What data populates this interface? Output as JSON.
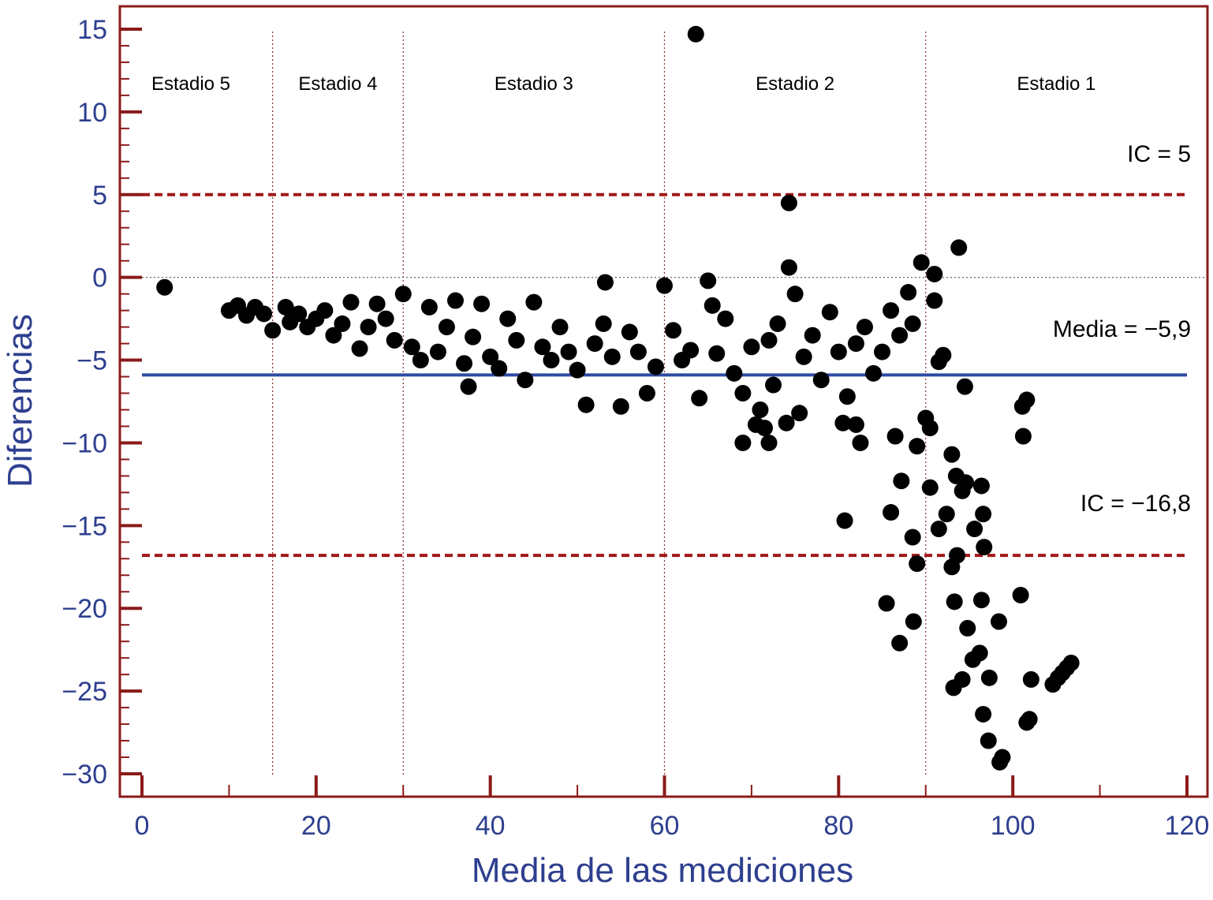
{
  "chart_data": {
    "type": "scatter",
    "title": "",
    "xlabel": "Media de las mediciones",
    "ylabel": "Diferencias",
    "xlim": [
      0,
      120
    ],
    "ylim": [
      -30,
      15
    ],
    "x_ticks": [
      0,
      20,
      40,
      60,
      80,
      100,
      120
    ],
    "y_ticks": [
      15,
      10,
      5,
      0,
      -5,
      -10,
      -15,
      -20,
      -25,
      -30
    ],
    "x_tick_labels": [
      "0",
      "20",
      "40",
      "60",
      "80",
      "100",
      "120"
    ],
    "y_tick_labels": [
      "15",
      "10",
      "5",
      "0",
      "−5",
      "−10",
      "−15",
      "−20",
      "−25",
      "−30"
    ],
    "grid": false,
    "colors": {
      "frame": "#8b1a1a",
      "axis_text": "#2e3f8f",
      "mean_line": "#2e4aa3",
      "ci_line": "#a01818",
      "points": "#000000"
    },
    "reference_lines": [
      {
        "type": "horizontal",
        "y": 5,
        "style": "dashed",
        "color": "#a01818",
        "label": "IC = 5"
      },
      {
        "type": "horizontal",
        "y": -5.9,
        "style": "solid",
        "color": "#2e4aa3",
        "label": "Media = −5,9"
      },
      {
        "type": "horizontal",
        "y": -16.8,
        "style": "dashed",
        "color": "#a01818",
        "label": "IC = −16,8"
      },
      {
        "type": "horizontal",
        "y": 0,
        "style": "dotted",
        "color": "#555555",
        "label": ""
      }
    ],
    "stage_boundaries": [
      15,
      30,
      60,
      90
    ],
    "stages": [
      {
        "label": "Estadio 5",
        "x_from": 0,
        "x_to": 15
      },
      {
        "label": "Estadio 4",
        "x_from": 15,
        "x_to": 30
      },
      {
        "label": "Estadio 3",
        "x_from": 30,
        "x_to": 60
      },
      {
        "label": "Estadio 2",
        "x_from": 60,
        "x_to": 90
      },
      {
        "label": "Estadio 1",
        "x_from": 90,
        "x_to": 120
      }
    ],
    "series": [
      {
        "points": [
          [
            2.6,
            -0.6
          ],
          [
            63.6,
            14.7
          ],
          [
            74.3,
            4.5
          ],
          [
            74.3,
            0.6
          ],
          [
            89.5,
            0.9
          ],
          [
            91.0,
            0.2
          ],
          [
            93.8,
            1.8
          ],
          [
            10,
            -2.0
          ],
          [
            11,
            -1.7
          ],
          [
            12,
            -2.3
          ],
          [
            13,
            -1.8
          ],
          [
            14,
            -2.2
          ],
          [
            15,
            -3.2
          ],
          [
            16.5,
            -1.8
          ],
          [
            17,
            -2.7
          ],
          [
            18,
            -2.2
          ],
          [
            19,
            -3.0
          ],
          [
            20,
            -2.5
          ],
          [
            21,
            -2.0
          ],
          [
            22,
            -3.5
          ],
          [
            23,
            -2.8
          ],
          [
            24,
            -1.5
          ],
          [
            25,
            -4.3
          ],
          [
            26,
            -3.0
          ],
          [
            27,
            -1.6
          ],
          [
            28,
            -2.5
          ],
          [
            29,
            -3.8
          ],
          [
            30,
            -1.0
          ],
          [
            31,
            -4.2
          ],
          [
            32,
            -5.0
          ],
          [
            33,
            -1.8
          ],
          [
            34,
            -4.5
          ],
          [
            35,
            -3.0
          ],
          [
            36,
            -1.4
          ],
          [
            37,
            -5.2
          ],
          [
            37.5,
            -6.6
          ],
          [
            38,
            -3.6
          ],
          [
            39,
            -1.6
          ],
          [
            40,
            -4.8
          ],
          [
            41,
            -5.5
          ],
          [
            42,
            -2.5
          ],
          [
            43,
            -3.8
          ],
          [
            44,
            -6.2
          ],
          [
            45,
            -1.5
          ],
          [
            46,
            -4.2
          ],
          [
            47,
            -5.0
          ],
          [
            48,
            -3.0
          ],
          [
            49,
            -4.5
          ],
          [
            50,
            -5.6
          ],
          [
            51,
            -7.7
          ],
          [
            52,
            -4.0
          ],
          [
            53,
            -2.8
          ],
          [
            53.2,
            -0.3
          ],
          [
            54,
            -4.8
          ],
          [
            55,
            -7.8
          ],
          [
            56,
            -3.3
          ],
          [
            57,
            -4.5
          ],
          [
            58,
            -7.0
          ],
          [
            59,
            -5.4
          ],
          [
            60,
            -0.5
          ],
          [
            61,
            -3.2
          ],
          [
            62,
            -5.0
          ],
          [
            63,
            -4.4
          ],
          [
            64,
            -7.3
          ],
          [
            65,
            -0.2
          ],
          [
            65.5,
            -1.7
          ],
          [
            66,
            -4.6
          ],
          [
            67,
            -2.5
          ],
          [
            68,
            -5.8
          ],
          [
            69,
            -7.0
          ],
          [
            70,
            -4.2
          ],
          [
            71,
            -8.0
          ],
          [
            71.5,
            -9.1
          ],
          [
            72,
            -3.8
          ],
          [
            72.5,
            -6.5
          ],
          [
            73,
            -2.8
          ],
          [
            74,
            -8.8
          ],
          [
            75,
            -1.0
          ],
          [
            75.5,
            -8.2
          ],
          [
            76,
            -4.8
          ],
          [
            77,
            -3.5
          ],
          [
            78,
            -6.2
          ],
          [
            79,
            -2.1
          ],
          [
            80,
            -4.5
          ],
          [
            80.5,
            -8.8
          ],
          [
            81,
            -7.2
          ],
          [
            82,
            -4.0
          ],
          [
            82.5,
            -10.0
          ],
          [
            83,
            -3.0
          ],
          [
            84,
            -5.8
          ],
          [
            85,
            -4.5
          ],
          [
            86,
            -2.0
          ],
          [
            86.5,
            -9.6
          ],
          [
            87,
            -3.5
          ],
          [
            88,
            -0.9
          ],
          [
            88.5,
            -2.8
          ],
          [
            89,
            -10.2
          ],
          [
            90,
            -8.5
          ],
          [
            90.5,
            -9.1
          ],
          [
            91,
            -1.4
          ],
          [
            91.5,
            -5.1
          ],
          [
            92,
            -4.7
          ],
          [
            93,
            -10.7
          ],
          [
            93.5,
            -12.0
          ],
          [
            69.0,
            -10.0
          ],
          [
            72.0,
            -10.0
          ],
          [
            70.5,
            -8.9
          ],
          [
            82.0,
            -8.9
          ],
          [
            101.1,
            -7.8
          ],
          [
            101.6,
            -7.4
          ],
          [
            101.2,
            -9.6
          ],
          [
            94.5,
            -6.6
          ],
          [
            80.7,
            -14.7
          ],
          [
            86.0,
            -14.2
          ],
          [
            87.2,
            -12.3
          ],
          [
            88.5,
            -15.7
          ],
          [
            89.0,
            -17.3
          ],
          [
            90.5,
            -12.7
          ],
          [
            91.5,
            -15.2
          ],
          [
            92.4,
            -14.3
          ],
          [
            93.0,
            -17.5
          ],
          [
            93.6,
            -16.8
          ],
          [
            94.2,
            -12.9
          ],
          [
            94.6,
            -12.4
          ],
          [
            95.6,
            -15.2
          ],
          [
            96.4,
            -12.6
          ],
          [
            96.6,
            -14.3
          ],
          [
            96.7,
            -16.3
          ],
          [
            85.5,
            -19.7
          ],
          [
            87.0,
            -22.1
          ],
          [
            88.6,
            -20.8
          ],
          [
            93.3,
            -19.6
          ],
          [
            94.8,
            -21.2
          ],
          [
            93.2,
            -24.8
          ],
          [
            94.2,
            -24.3
          ],
          [
            95.4,
            -23.1
          ],
          [
            96.2,
            -22.7
          ],
          [
            96.4,
            -19.5
          ],
          [
            98.4,
            -20.8
          ],
          [
            100.9,
            -19.2
          ],
          [
            96.6,
            -26.4
          ],
          [
            97.2,
            -28.0
          ],
          [
            97.3,
            -24.2
          ],
          [
            98.5,
            -29.3
          ],
          [
            98.8,
            -29.0
          ],
          [
            101.6,
            -26.9
          ],
          [
            101.9,
            -26.7
          ],
          [
            102.1,
            -24.3
          ],
          [
            104.6,
            -24.6
          ],
          [
            105.2,
            -24.2
          ],
          [
            105.7,
            -23.9
          ],
          [
            106.2,
            -23.6
          ],
          [
            106.7,
            -23.3
          ]
        ]
      }
    ]
  }
}
